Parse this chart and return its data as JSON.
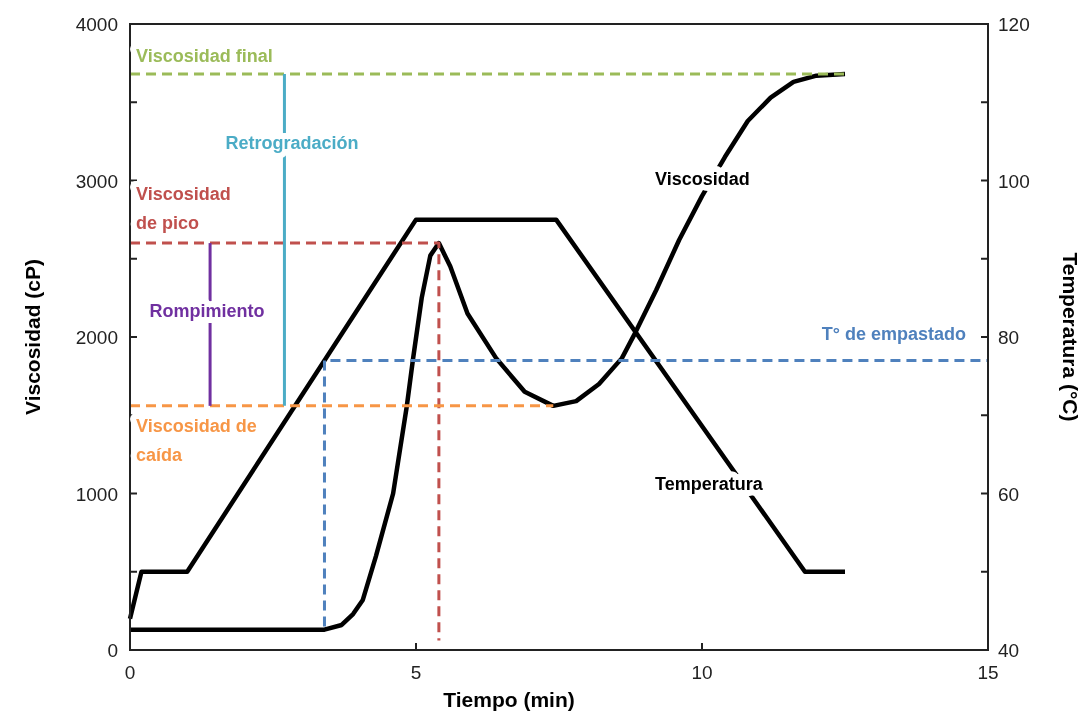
{
  "chart_data": {
    "type": "line",
    "xlabel": "Tiempo (min)",
    "ylabel": "Viscosidad (cP)",
    "y2label": "Temperatura (°C)",
    "xlim": [
      0,
      15
    ],
    "xticks": [
      0,
      5,
      10,
      15
    ],
    "ylim": [
      0,
      4000
    ],
    "yticks": [
      0,
      {
        "value": 500,
        "label": null
      },
      1000,
      {
        "value": 1500,
        "label": null
      },
      2000,
      {
        "value": 2500,
        "label": null
      },
      3000,
      {
        "value": 3500,
        "label": null
      },
      4000
    ],
    "y2lim": [
      40,
      120
    ],
    "y2ticks": [
      40,
      {
        "value": 50,
        "label": null
      },
      60,
      {
        "value": 70,
        "label": null
      },
      80,
      {
        "value": 90,
        "label": null
      },
      100,
      {
        "value": 110,
        "label": null
      },
      120
    ],
    "grid": false,
    "marker": "none",
    "series": [
      {
        "name": "Viscosidad",
        "color": "#000000",
        "line_style": "solid",
        "x": [
          0,
          3.4,
          3.7,
          3.9,
          4.07,
          4.3,
          4.6,
          4.84,
          4.95,
          5.1,
          5.25,
          5.4,
          5.6,
          5.9,
          6.4,
          6.9,
          7.4,
          7.8,
          8.2,
          8.6,
          8.83,
          9.2,
          9.6,
          10.0,
          10.4,
          10.8,
          11.2,
          11.6,
          12.0,
          12.5
        ],
        "values": [
          130,
          130,
          160,
          230,
          320,
          600,
          1000,
          1560,
          1865,
          2250,
          2520,
          2600,
          2450,
          2150,
          1865,
          1650,
          1560,
          1590,
          1700,
          1865,
          2025,
          2300,
          2620,
          2900,
          3150,
          3380,
          3530,
          3630,
          3670,
          3680
        ]
      },
      {
        "name": "Temperatura",
        "color": "#000000",
        "line_style": "solid",
        "axis": "y2",
        "x": [
          0,
          0.2,
          1,
          5,
          7.45,
          11.8,
          12.5
        ],
        "values": [
          44,
          50,
          50,
          95,
          95,
          50,
          50
        ]
      },
      {
        "name": "Viscosidad final",
        "color": "#9bbb59",
        "line_style": "dashed",
        "x": [
          0,
          12.5
        ],
        "values": [
          3680,
          3680
        ]
      },
      {
        "name": "Viscosidad de pico",
        "color": "#c0504d",
        "line_style": "dashed",
        "x": [
          0,
          5.4,
          5.4
        ],
        "values": [
          2600,
          2600,
          60
        ]
      },
      {
        "name": "Viscosidad de caída",
        "color": "#f79646",
        "line_style": "dashed",
        "x": [
          0,
          7.4
        ],
        "values": [
          1560,
          1560
        ]
      },
      {
        "name": "T° de empastado",
        "color": "#4f81bd",
        "line_style": "dashed",
        "axis": "y2",
        "x": [
          3.4,
          3.4,
          15
        ],
        "values": [
          43,
          77,
          77
        ]
      },
      {
        "name": "Retrogradación",
        "color": "#4bacc6",
        "line_style": "solid",
        "x": [
          2.7,
          2.7
        ],
        "values": [
          1560,
          3680
        ]
      },
      {
        "name": "Rompimiento",
        "color": "#7030a0",
        "line_style": "solid",
        "x": [
          1.4,
          1.4
        ],
        "values": [
          1560,
          2600
        ]
      }
    ]
  }
}
